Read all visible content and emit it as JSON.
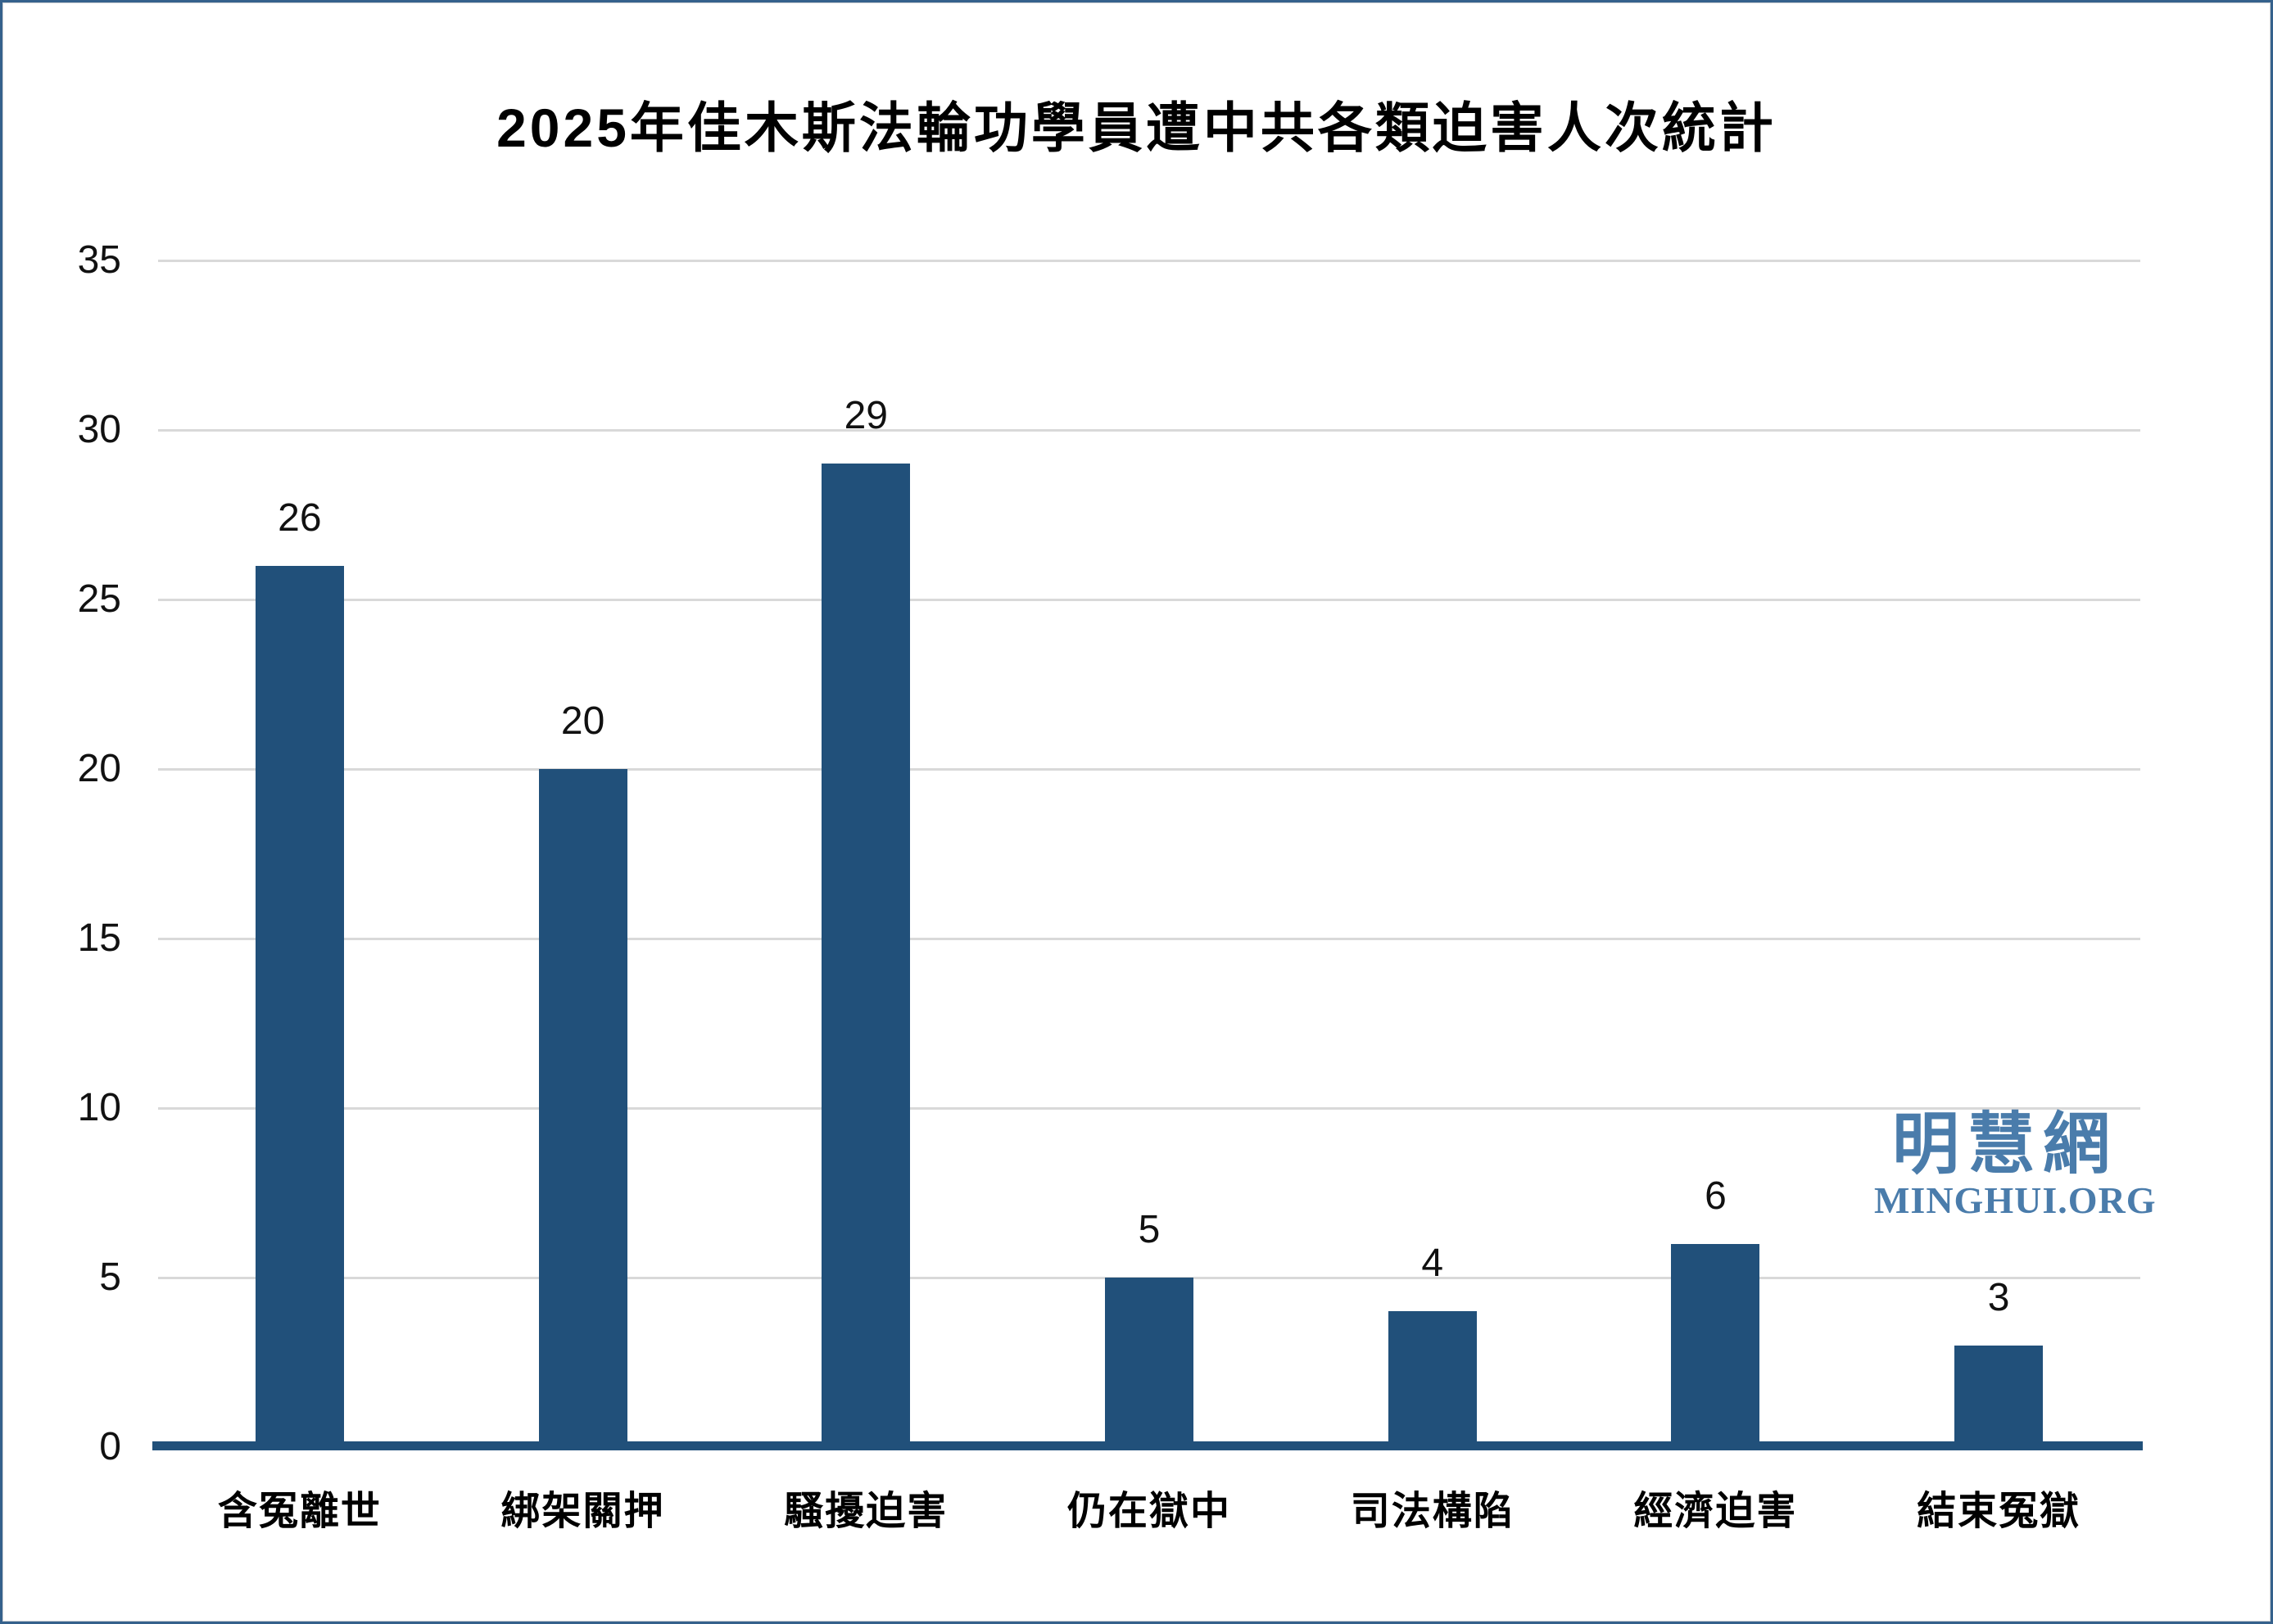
{
  "title": "2025年佳木斯法輪功學員遭中共各類迫害人次統計",
  "watermark": {
    "cjk": "明慧網",
    "latin": "MINGHUI.ORG"
  },
  "colors": {
    "bar": "#21507A",
    "axis_line": "#21507A",
    "gridline": "#d9d9d9",
    "label_text": "#111111",
    "title_text": "#000000",
    "watermark": "#4a7cab",
    "frame_border": "#35618C",
    "background": "#ffffff"
  },
  "chart_data": {
    "type": "bar",
    "title": "2025年佳木斯法輪功學員遭中共各類迫害人次統計",
    "categories": [
      "含冤離世",
      "綁架關押",
      "騷擾迫害",
      "仍在獄中",
      "司法構陷",
      "經濟迫害",
      "結束冤獄"
    ],
    "values": [
      26,
      20,
      29,
      5,
      4,
      6,
      3
    ],
    "data_labels_shown": true,
    "xlabel": "",
    "ylabel": "",
    "ylim": [
      0,
      35
    ],
    "yticks": [
      0,
      5,
      10,
      15,
      20,
      25,
      30,
      35
    ],
    "grid": "horizontal",
    "legend_position": "none",
    "bar_color": "#21507A"
  }
}
